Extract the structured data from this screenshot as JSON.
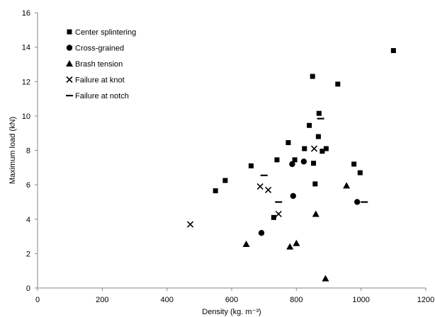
{
  "chart_data": {
    "type": "scatter",
    "title": "",
    "xlabel": "Density (kg. m⁻³)",
    "ylabel": "Maximum load (kN)",
    "xlim": [
      0,
      1200
    ],
    "ylim": [
      0,
      16
    ],
    "xticks": [
      "0",
      "200",
      "400",
      "600",
      "800",
      "1000",
      "1200"
    ],
    "yticks": [
      "0",
      "2",
      "4",
      "6",
      "8",
      "10",
      "12",
      "14",
      "16"
    ],
    "grid": false,
    "legend_position": "top-left",
    "series": [
      {
        "name": "Center splintering",
        "marker": "square",
        "points": [
          [
            550,
            5.65
          ],
          [
            580,
            6.25
          ],
          [
            660,
            7.1
          ],
          [
            730,
            4.1
          ],
          [
            740,
            7.45
          ],
          [
            775,
            8.45
          ],
          [
            795,
            7.45
          ],
          [
            825,
            8.1
          ],
          [
            840,
            9.45
          ],
          [
            850,
            12.3
          ],
          [
            853,
            7.25
          ],
          [
            858,
            6.05
          ],
          [
            868,
            8.8
          ],
          [
            870,
            10.15
          ],
          [
            880,
            7.95
          ],
          [
            892,
            8.1
          ],
          [
            928,
            11.85
          ],
          [
            978,
            7.2
          ],
          [
            997,
            6.7
          ],
          [
            1100,
            13.8
          ]
        ]
      },
      {
        "name": "Cross-grained",
        "marker": "circle",
        "points": [
          [
            692,
            3.2
          ],
          [
            787,
            7.2
          ],
          [
            790,
            5.35
          ],
          [
            823,
            7.35
          ],
          [
            988,
            5.0
          ]
        ]
      },
      {
        "name": "Brash tension",
        "marker": "triangle",
        "points": [
          [
            645,
            2.55
          ],
          [
            780,
            2.4
          ],
          [
            800,
            2.6
          ],
          [
            860,
            4.3
          ],
          [
            890,
            0.55
          ],
          [
            955,
            5.95
          ]
        ]
      },
      {
        "name": "Failure at knot",
        "marker": "x",
        "points": [
          [
            472,
            3.7
          ],
          [
            688,
            5.9
          ],
          [
            713,
            5.7
          ],
          [
            745,
            4.3
          ],
          [
            855,
            8.1
          ]
        ]
      },
      {
        "name": "Failure at notch",
        "marker": "dash",
        "points": [
          [
            700,
            6.55
          ],
          [
            745,
            5.0
          ],
          [
            875,
            9.85
          ],
          [
            1010,
            5.0
          ]
        ]
      }
    ]
  }
}
